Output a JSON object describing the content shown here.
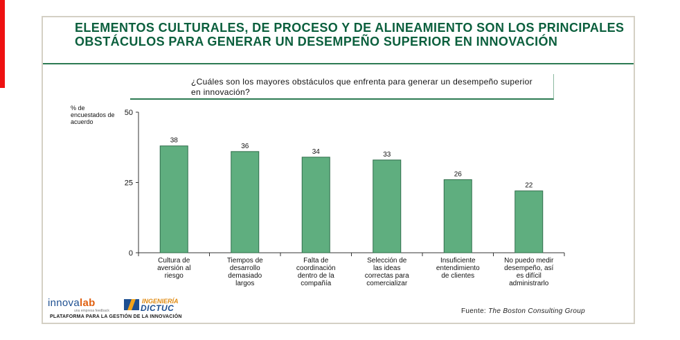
{
  "slide": {
    "title": "ELEMENTOS CULTURALES, DE PROCESO Y DE ALINEAMIENTO SON LOS PRINCIPALES OBSTÁCULOS PARA GENERAR UN DESEMPEÑO SUPERIOR EN INNOVACIÓN",
    "question": "¿Cuáles son los mayores obstáculos que enfrenta para generar un desempeño superior en innovación?",
    "source_label": "Fuente:",
    "source_value": "The Boston Consulting Group",
    "accent_color": "#0b5f3d",
    "bar_color": "#5fae7f"
  },
  "logo": {
    "brand_a": "innova",
    "brand_b": "lab",
    "tagline": "una empresa feedback",
    "partner_top": "INGENIERÍA",
    "partner_bottom": "DICTUC",
    "platform": "PLATAFORMA PARA LA GESTIÓN DE LA INNOVACIÓN"
  },
  "chart_data": {
    "type": "bar",
    "ylabel": "% de encuestados de acuerdo",
    "ylim": [
      0,
      50
    ],
    "yticks": [
      0,
      25,
      50
    ],
    "grid": false,
    "categories": [
      [
        "Cultura de",
        "aversión al",
        "riesgo"
      ],
      [
        "Tiempos de",
        "desarrollo",
        "demasiado",
        "largos"
      ],
      [
        "Falta de",
        "coordinación",
        "dentro de la",
        "compañía"
      ],
      [
        "Selección de",
        "las ideas",
        "correctas para",
        "comercializar"
      ],
      [
        "Insuficiente",
        "entendimiento",
        "de clientes"
      ],
      [
        "No puedo medir",
        "desempeño, así",
        "es difícil",
        "administrarlo"
      ]
    ],
    "values": [
      38,
      36,
      34,
      33,
      26,
      22
    ]
  }
}
